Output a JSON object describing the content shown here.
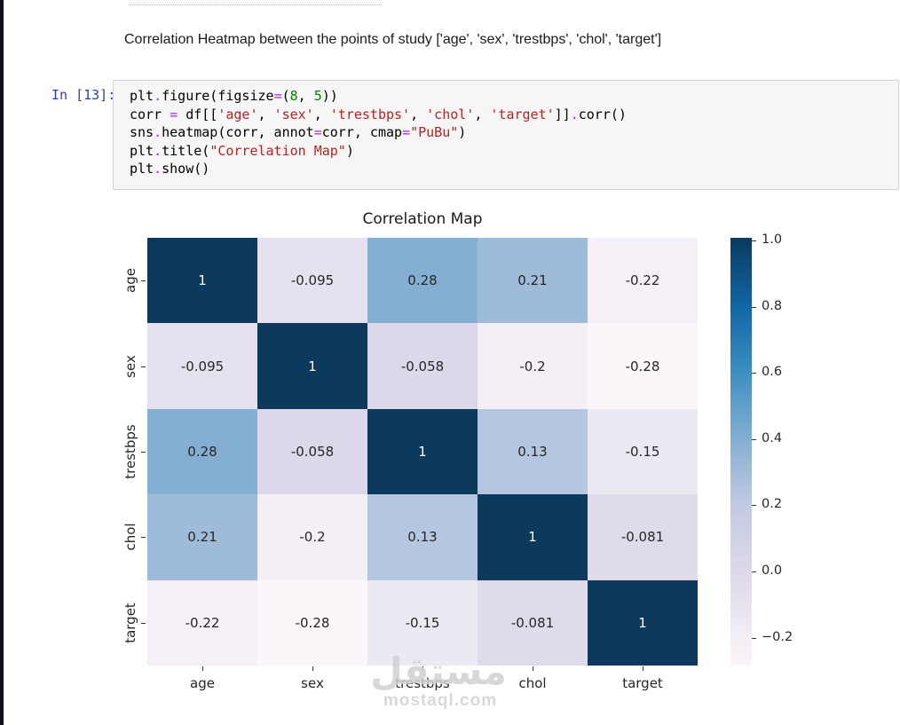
{
  "page": {
    "background": "#ffffff",
    "left_edge_color": "#0e1117"
  },
  "notebook": {
    "markdown_heading": "Correlation Heatmap between the points of study ['age', 'sex', 'trestbps', 'chol', 'target']",
    "code_cell": {
      "prompt": "In [13]:",
      "prompt_color": "#303F9F",
      "syntax_colors": {
        "plain": "#000000",
        "operator": "#AA22FF",
        "number": "#008000",
        "string": "#BA2121"
      },
      "code_lines": [
        [
          {
            "t": "plt",
            "c": "p"
          },
          {
            "t": ".",
            "c": "o"
          },
          {
            "t": "figure(figsize",
            "c": "p"
          },
          {
            "t": "=",
            "c": "o"
          },
          {
            "t": "(",
            "c": "p"
          },
          {
            "t": "8",
            "c": "n"
          },
          {
            "t": ", ",
            "c": "p"
          },
          {
            "t": "5",
            "c": "n"
          },
          {
            "t": "))",
            "c": "p"
          }
        ],
        [
          {
            "t": "corr ",
            "c": "p"
          },
          {
            "t": "=",
            "c": "o"
          },
          {
            "t": " df[[",
            "c": "p"
          },
          {
            "t": "'age'",
            "c": "s"
          },
          {
            "t": ", ",
            "c": "p"
          },
          {
            "t": "'sex'",
            "c": "s"
          },
          {
            "t": ", ",
            "c": "p"
          },
          {
            "t": "'trestbps'",
            "c": "s"
          },
          {
            "t": ", ",
            "c": "p"
          },
          {
            "t": "'chol'",
            "c": "s"
          },
          {
            "t": ", ",
            "c": "p"
          },
          {
            "t": "'target'",
            "c": "s"
          },
          {
            "t": "]]",
            "c": "p"
          },
          {
            "t": ".",
            "c": "o"
          },
          {
            "t": "corr()",
            "c": "p"
          }
        ],
        [
          {
            "t": "sns",
            "c": "p"
          },
          {
            "t": ".",
            "c": "o"
          },
          {
            "t": "heatmap(corr, annot",
            "c": "p"
          },
          {
            "t": "=",
            "c": "o"
          },
          {
            "t": "corr, cmap",
            "c": "p"
          },
          {
            "t": "=",
            "c": "o"
          },
          {
            "t": "\"PuBu\"",
            "c": "s"
          },
          {
            "t": ")",
            "c": "p"
          }
        ],
        [
          {
            "t": "plt",
            "c": "p"
          },
          {
            "t": ".",
            "c": "o"
          },
          {
            "t": "title(",
            "c": "p"
          },
          {
            "t": "\"Correlation Map\"",
            "c": "s"
          },
          {
            "t": ")",
            "c": "p"
          }
        ],
        [
          {
            "t": "plt",
            "c": "p"
          },
          {
            "t": ".",
            "c": "o"
          },
          {
            "t": "show()",
            "c": "p"
          }
        ]
      ]
    }
  },
  "chart_data": {
    "type": "heatmap",
    "title": "Correlation Map",
    "categories": [
      "age",
      "sex",
      "trestbps",
      "chol",
      "target"
    ],
    "matrix": [
      [
        1,
        -0.095,
        0.28,
        0.21,
        -0.22
      ],
      [
        -0.095,
        1,
        -0.058,
        -0.2,
        -0.28
      ],
      [
        0.28,
        -0.058,
        1,
        0.13,
        -0.15
      ],
      [
        0.21,
        -0.2,
        0.13,
        1,
        -0.081
      ],
      [
        -0.22,
        -0.28,
        -0.15,
        -0.081,
        1
      ]
    ],
    "cell_labels": [
      [
        "1",
        "-0.095",
        "0.28",
        "0.21",
        "-0.22"
      ],
      [
        "-0.095",
        "1",
        "-0.058",
        "-0.2",
        "-0.28"
      ],
      [
        "0.28",
        "-0.058",
        "1",
        "0.13",
        "-0.15"
      ],
      [
        "0.21",
        "-0.2",
        "0.13",
        "1",
        "-0.081"
      ],
      [
        "-0.22",
        "-0.28",
        "-0.15",
        "-0.081",
        "1"
      ]
    ],
    "colormap": "PuBu",
    "vmin": -0.28,
    "vmax": 1.0,
    "grid": false,
    "legend_position": "right-colorbar",
    "cell_colors": {
      "1": "#0d3a5c",
      "0.28": "#84aed2",
      "0.21": "#9fbbda",
      "0.13": "#b5c6e0",
      "-0.058": "#dcd8e9",
      "-0.081": "#e0dbeb",
      "-0.095": "#e6e1ee",
      "-0.15": "#ede9f2",
      "-0.2": "#f4eef6",
      "-0.22": "#f5f0f7",
      "-0.28": "#faf6fa"
    },
    "annot_color_light_cells": "#262626",
    "annot_color_dark_cells": "#ffffff",
    "colorbar": {
      "ticks": [
        "1.0",
        "0.8",
        "0.6",
        "0.4",
        "0.2",
        "0.0",
        "−0.2"
      ],
      "gradient_stops": [
        {
          "pos": 0,
          "color": "#0a3a5e"
        },
        {
          "pos": 16,
          "color": "#1166a5"
        },
        {
          "pos": 31.5,
          "color": "#3d8fc1"
        },
        {
          "pos": 47,
          "color": "#84aed2"
        },
        {
          "pos": 63,
          "color": "#c2cbe3"
        },
        {
          "pos": 78,
          "color": "#ddd8e9"
        },
        {
          "pos": 94,
          "color": "#f4eef5"
        },
        {
          "pos": 100,
          "color": "#fbf5f9"
        }
      ]
    }
  },
  "watermark": {
    "arabic": "مستقل",
    "domain": "mostaql.com"
  }
}
